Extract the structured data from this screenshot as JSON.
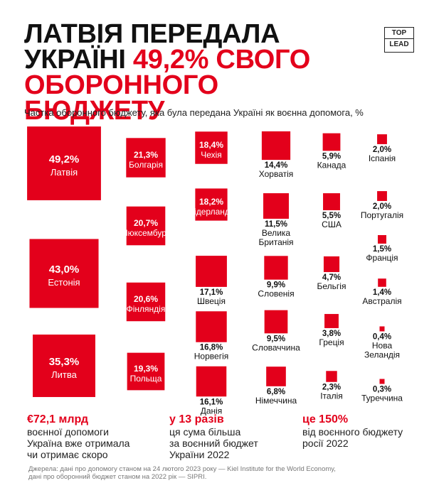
{
  "header": {
    "title_line1": "ЛАТВІЯ ПЕРЕДАЛА",
    "title_line2_prefix": "УКРАЇНІ ",
    "title_line2_highlight": "49,2% СВОГО",
    "title_line3": "ОБОРОННОГО БЮДЖЕТУ",
    "logo_top": "TOP",
    "logo_bottom": "LEAD"
  },
  "colors": {
    "accent": "#e3001b",
    "text": "#111111"
  },
  "chart_data": {
    "type": "area-proportional squares",
    "title": "Частка оборонного бюджету, яка була передана Україні як воєнна допомога, %",
    "unit": "%",
    "items": [
      {
        "country": "Латвія",
        "value": 49.2,
        "label": "49,2%"
      },
      {
        "country": "Естонія",
        "value": 43.0,
        "label": "43,0%"
      },
      {
        "country": "Литва",
        "value": 35.3,
        "label": "35,3%"
      },
      {
        "country": "Болгарія",
        "value": 21.3,
        "label": "21,3%"
      },
      {
        "country": "Люксембург",
        "value": 20.7,
        "label": "20,7%"
      },
      {
        "country": "Фінляндія",
        "value": 20.6,
        "label": "20,6%"
      },
      {
        "country": "Польща",
        "value": 19.3,
        "label": "19,3%"
      },
      {
        "country": "Чехія",
        "value": 18.4,
        "label": "18,4%"
      },
      {
        "country": "Нідерланди",
        "value": 18.2,
        "label": "18,2%"
      },
      {
        "country": "Швеція",
        "value": 17.1,
        "label": "17,1%"
      },
      {
        "country": "Норвегія",
        "value": 16.8,
        "label": "16,8%"
      },
      {
        "country": "Данія",
        "value": 16.1,
        "label": "16,1%"
      },
      {
        "country": "Хорватія",
        "value": 14.4,
        "label": "14,4%"
      },
      {
        "country": "Велика Британія",
        "value": 11.5,
        "label": "11,5%"
      },
      {
        "country": "Словенія",
        "value": 9.9,
        "label": "9,9%"
      },
      {
        "country": "Словаччина",
        "value": 9.5,
        "label": "9,5%"
      },
      {
        "country": "Німеччина",
        "value": 6.8,
        "label": "6,8%"
      },
      {
        "country": "Канада",
        "value": 5.9,
        "label": "5,9%"
      },
      {
        "country": "США",
        "value": 5.5,
        "label": "5,5%"
      },
      {
        "country": "Бельгія",
        "value": 4.7,
        "label": "4,7%"
      },
      {
        "country": "Греція",
        "value": 3.8,
        "label": "3,8%"
      },
      {
        "country": "Італія",
        "value": 2.3,
        "label": "2,3%"
      },
      {
        "country": "Іспанія",
        "value": 2.0,
        "label": "2,0%"
      },
      {
        "country": "Португалія",
        "value": 2.0,
        "label": "2,0%"
      },
      {
        "country": "Франція",
        "value": 1.5,
        "label": "1,5%"
      },
      {
        "country": "Австралія",
        "value": 1.4,
        "label": "1,4%"
      },
      {
        "country": "Нова Зеландія",
        "value": 0.4,
        "label": "0,4%"
      },
      {
        "country": "Туреччина",
        "value": 0.3,
        "label": "0,3%"
      }
    ]
  },
  "stats": [
    {
      "big": "€72,1 млрд",
      "lines": [
        "воєнної допомоги",
        "Україна вже отримала",
        "чи отримає скоро"
      ]
    },
    {
      "big": "у 13 разів",
      "lines": [
        "ця сума більша",
        "за воєнний бюджет",
        "України 2022"
      ]
    },
    {
      "big": "це 150%",
      "lines": [
        "від воєнного бюджету",
        "росії 2022"
      ]
    }
  ],
  "source": {
    "line1": "Джерела: дані про допомогу станом на 24 лютого 2023 року — Kiel Institute for the World Economy,",
    "line2": "дані про оборонний бюджет станом на 2022 рік — SIPRI."
  }
}
